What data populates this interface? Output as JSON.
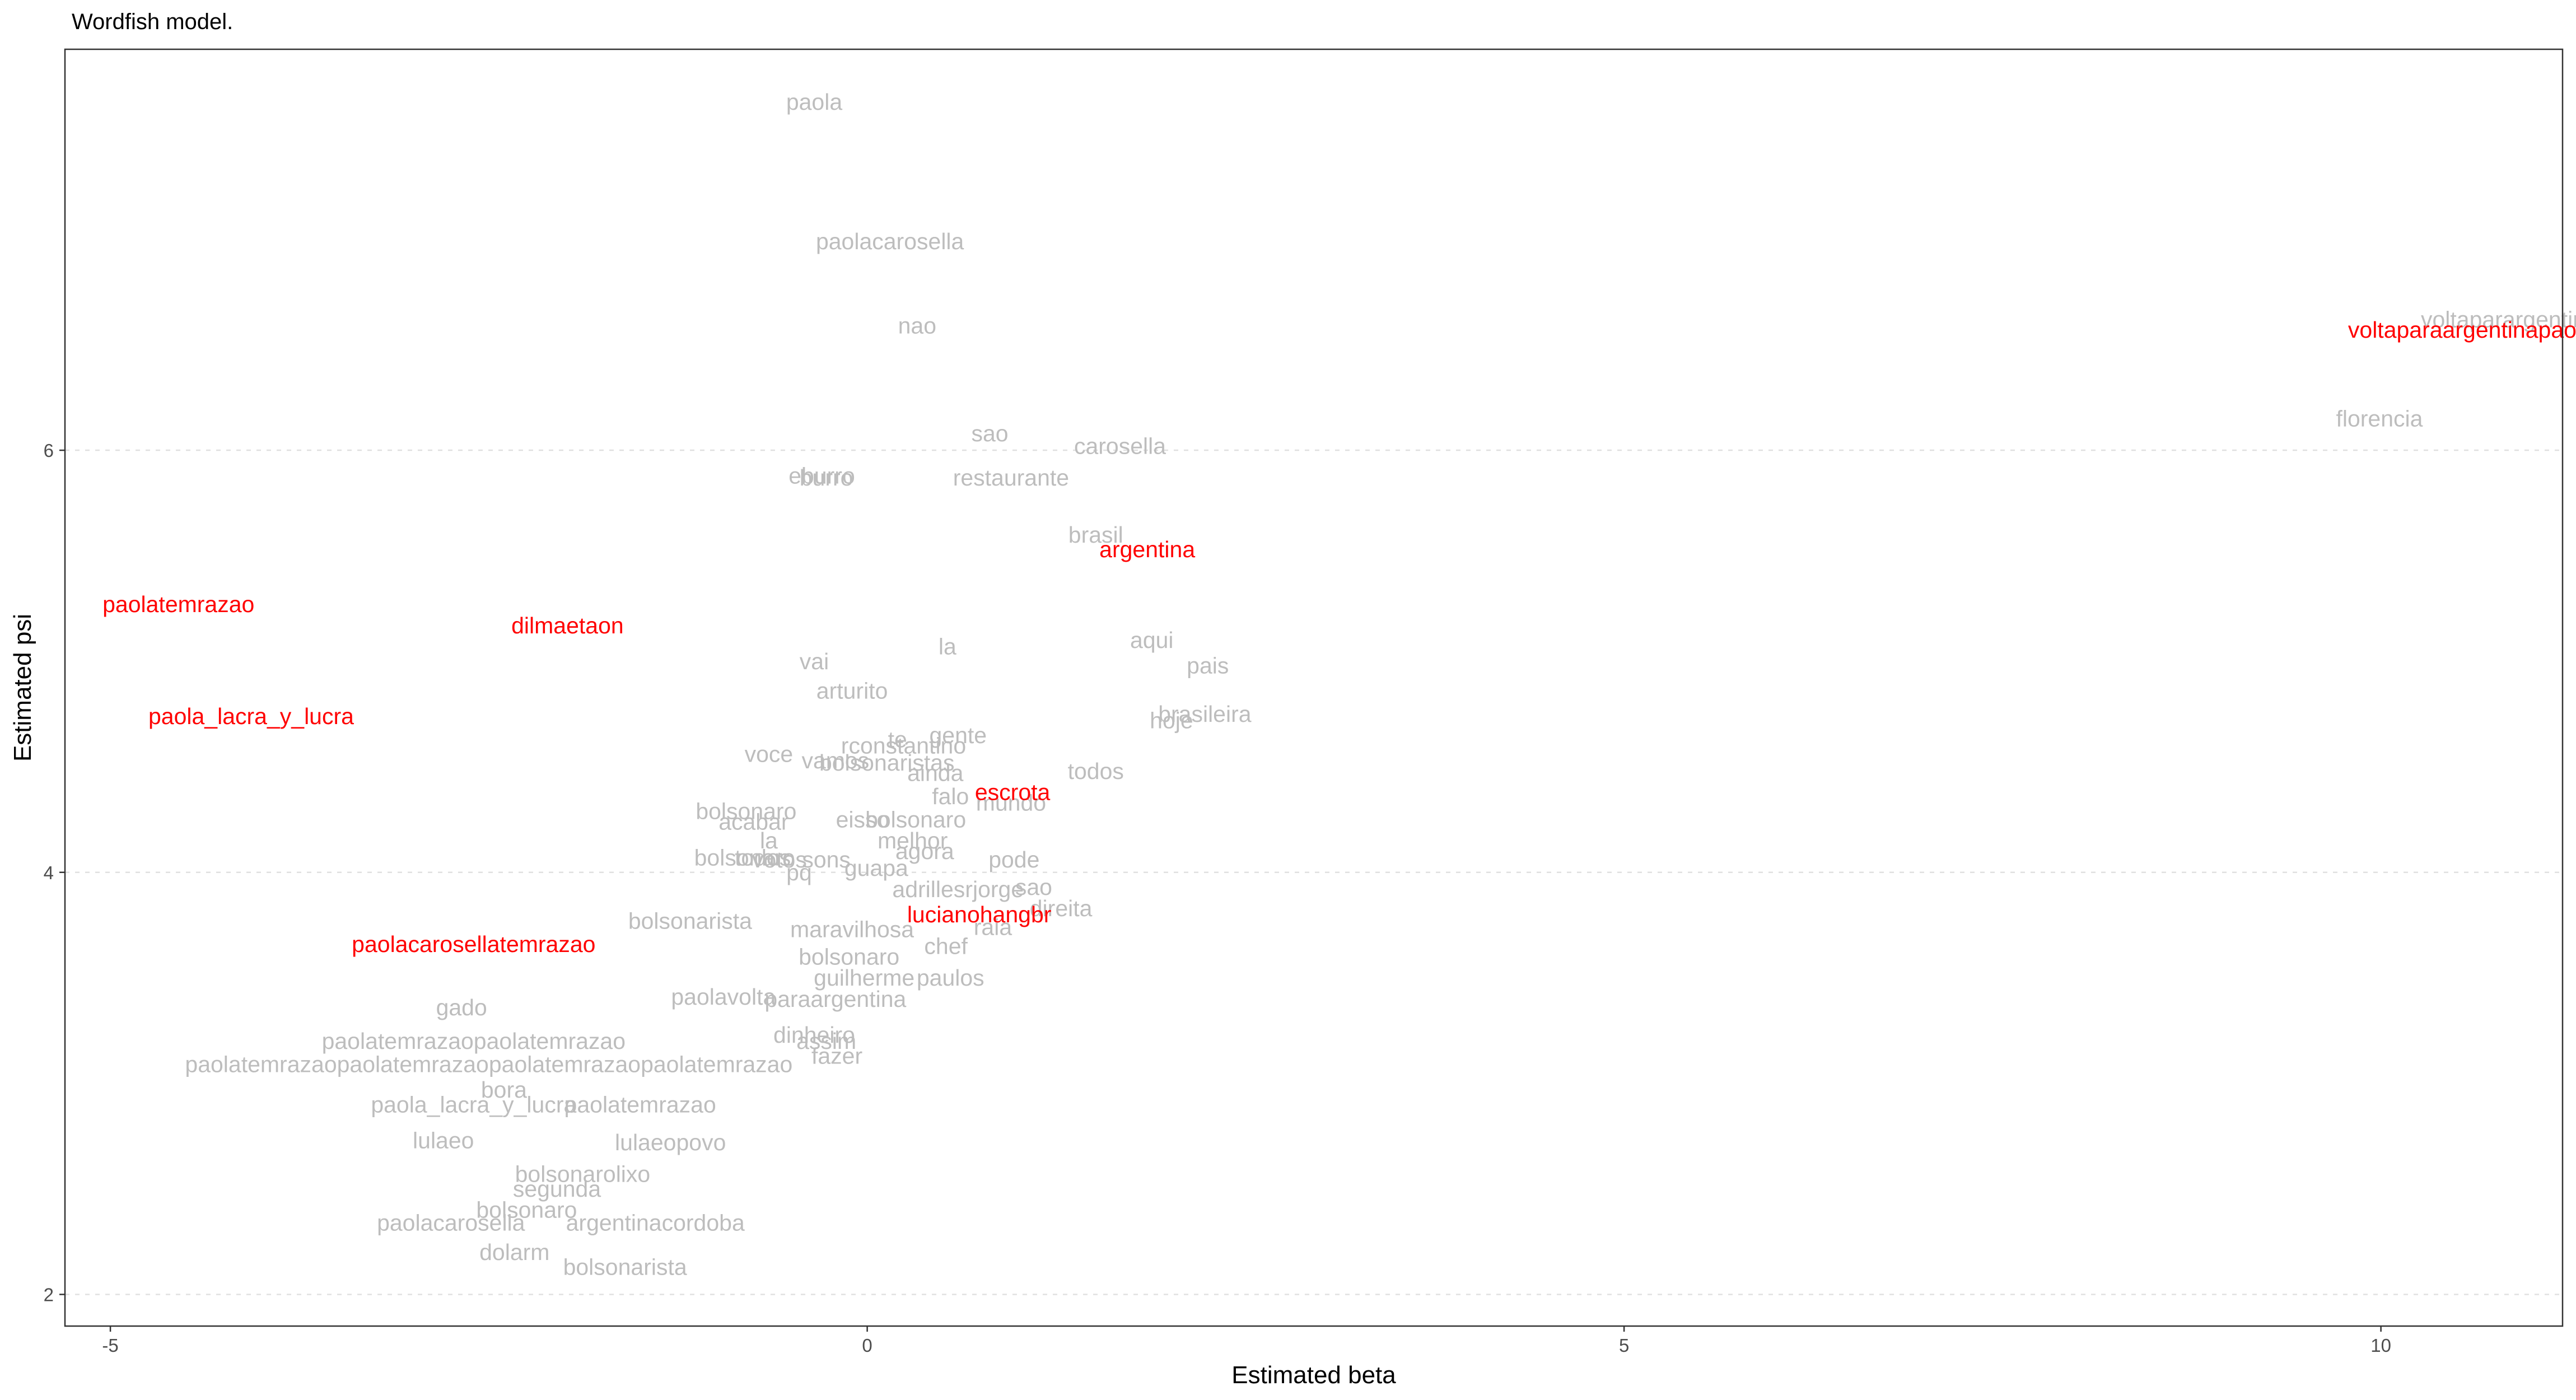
{
  "chart_data": {
    "type": "scatter",
    "title": "Wordfish model.",
    "xlabel": "Estimated beta",
    "ylabel": "Estimated psi",
    "xlim": [
      -5.3,
      11.2
    ],
    "ylim": [
      1.85,
      7.9
    ],
    "x_ticks": [
      -5,
      0,
      5,
      10
    ],
    "y_ticks": [
      2,
      4,
      6
    ],
    "grid": "horizontal major dotted",
    "colors": {
      "normal": "#bdbdbd",
      "highlight": "#ff0000",
      "border": "#333333",
      "grid": "#e0e0e0"
    },
    "points": [
      {
        "label": "paola",
        "x": -0.35,
        "y": 7.65
      },
      {
        "label": "paolacarosella",
        "x": 0.15,
        "y": 6.99
      },
      {
        "label": "nao",
        "x": 0.33,
        "y": 6.59
      },
      {
        "label": "voltaparargentina",
        "x": 10.85,
        "y": 6.62
      },
      {
        "label": "florencia",
        "x": 9.99,
        "y": 6.15
      },
      {
        "label": "sao",
        "x": 0.81,
        "y": 6.08
      },
      {
        "label": "carosella",
        "x": 1.67,
        "y": 6.02
      },
      {
        "label": "eburro",
        "x": -0.3,
        "y": 5.88
      },
      {
        "label": "burro",
        "x": -0.27,
        "y": 5.87
      },
      {
        "label": "restaurante",
        "x": 0.95,
        "y": 5.87
      },
      {
        "label": "brasil",
        "x": 1.51,
        "y": 5.6
      },
      {
        "label": "la",
        "x": 0.53,
        "y": 5.07
      },
      {
        "label": "aqui",
        "x": 1.88,
        "y": 5.1
      },
      {
        "label": "vai",
        "x": -0.35,
        "y": 5.0
      },
      {
        "label": "pais",
        "x": 2.25,
        "y": 4.98
      },
      {
        "label": "arturito",
        "x": -0.1,
        "y": 4.86
      },
      {
        "label": "brasileira",
        "x": 2.23,
        "y": 4.75
      },
      {
        "label": "hoje",
        "x": 2.01,
        "y": 4.72
      },
      {
        "label": "gente",
        "x": 0.6,
        "y": 4.65
      },
      {
        "label": "te",
        "x": 0.2,
        "y": 4.63
      },
      {
        "label": "rconstantino",
        "x": 0.24,
        "y": 4.6
      },
      {
        "label": "voce",
        "x": -0.65,
        "y": 4.56
      },
      {
        "label": "vamos",
        "x": -0.21,
        "y": 4.53
      },
      {
        "label": "bolsonaristas",
        "x": 0.13,
        "y": 4.52
      },
      {
        "label": "ainda",
        "x": 0.45,
        "y": 4.47
      },
      {
        "label": "todos",
        "x": 1.51,
        "y": 4.48
      },
      {
        "label": "falo",
        "x": 0.55,
        "y": 4.36
      },
      {
        "label": "mundo",
        "x": 0.95,
        "y": 4.33
      },
      {
        "label": "bolsonaro",
        "x": -0.8,
        "y": 4.29
      },
      {
        "label": "eisso",
        "x": -0.03,
        "y": 4.25
      },
      {
        "label": "bolsonaro",
        "x": 0.32,
        "y": 4.25
      },
      {
        "label": "acabar",
        "x": -0.75,
        "y": 4.24
      },
      {
        "label": "melhor",
        "x": 0.3,
        "y": 4.15
      },
      {
        "label": "agora",
        "x": 0.38,
        "y": 4.1
      },
      {
        "label": "la",
        "x": -0.65,
        "y": 4.15
      },
      {
        "label": "bolsonaro",
        "x": -0.81,
        "y": 4.07
      },
      {
        "label": "todos",
        "x": -0.69,
        "y": 4.07
      },
      {
        "label": "votos",
        "x": -0.58,
        "y": 4.06
      },
      {
        "label": "sons",
        "x": -0.27,
        "y": 4.06
      },
      {
        "label": "pode",
        "x": 0.97,
        "y": 4.06
      },
      {
        "label": "guapa",
        "x": 0.06,
        "y": 4.02
      },
      {
        "label": "pq",
        "x": -0.45,
        "y": 4.0
      },
      {
        "label": "adrillesrjorge",
        "x": 0.6,
        "y": 3.92
      },
      {
        "label": "sao",
        "x": 1.1,
        "y": 3.93
      },
      {
        "label": "direita",
        "x": 1.28,
        "y": 3.83
      },
      {
        "label": "bolsonarista",
        "x": -1.17,
        "y": 3.77
      },
      {
        "label": "maravilhosa",
        "x": -0.1,
        "y": 3.73
      },
      {
        "label": "raia",
        "x": 0.83,
        "y": 3.74
      },
      {
        "label": "chef",
        "x": 0.52,
        "y": 3.65
      },
      {
        "label": "bolsonaro",
        "x": -0.12,
        "y": 3.6
      },
      {
        "label": "guilherme",
        "x": -0.02,
        "y": 3.5
      },
      {
        "label": "paulos",
        "x": 0.55,
        "y": 3.5
      },
      {
        "label": "paolavolta",
        "x": -0.95,
        "y": 3.41
      },
      {
        "label": "paraargentina",
        "x": -0.21,
        "y": 3.4
      },
      {
        "label": "dinheiro",
        "x": -0.35,
        "y": 3.23
      },
      {
        "label": "assim",
        "x": -0.27,
        "y": 3.2
      },
      {
        "label": "fazer",
        "x": -0.2,
        "y": 3.13
      },
      {
        "label": "gado",
        "x": -2.68,
        "y": 3.36
      },
      {
        "label": "paolatemrazaopaolatemrazao",
        "x": -2.6,
        "y": 3.2
      },
      {
        "label": "paolatemrazaopaolatemrazaopaolatemrazaopaolatemrazao",
        "x": -2.5,
        "y": 3.09
      },
      {
        "label": "bora",
        "x": -2.4,
        "y": 2.97
      },
      {
        "label": "paola_lacra_y_lucra",
        "x": -2.6,
        "y": 2.9
      },
      {
        "label": "paolatemrazao",
        "x": -1.5,
        "y": 2.9
      },
      {
        "label": "lulaeopovo",
        "x": -1.3,
        "y": 2.72
      },
      {
        "label": "bolsonaro",
        "x": -2.25,
        "y": 2.4
      },
      {
        "label": "paolacarosella",
        "x": -2.75,
        "y": 2.34
      },
      {
        "label": "argentinacordoba",
        "x": -1.4,
        "y": 2.34
      },
      {
        "label": "lulaeo",
        "x": -2.8,
        "y": 2.73
      },
      {
        "label": "bolsonarolixo",
        "x": -1.88,
        "y": 2.57
      },
      {
        "label": "dolarm",
        "x": -2.33,
        "y": 2.2
      },
      {
        "label": "bolsonarista",
        "x": -1.6,
        "y": 2.13
      },
      {
        "label": "segunda",
        "x": -2.05,
        "y": 2.5
      }
    ],
    "highlights": [
      {
        "label": "voltaparaargentinapaolacarosella",
        "x": 10.9,
        "y": 6.57
      },
      {
        "label": "argentina",
        "x": 1.85,
        "y": 5.53
      },
      {
        "label": "paolatemrazao",
        "x": -4.55,
        "y": 5.27
      },
      {
        "label": "dilmaetaon",
        "x": -1.98,
        "y": 5.17
      },
      {
        "label": "paola_lacra_y_lucra",
        "x": -4.07,
        "y": 4.74
      },
      {
        "label": "escrota",
        "x": 0.96,
        "y": 4.38
      },
      {
        "label": "lucianohangbr",
        "x": 0.74,
        "y": 3.8
      },
      {
        "label": "paolacarosellatemrazao",
        "x": -2.6,
        "y": 3.66
      }
    ]
  }
}
